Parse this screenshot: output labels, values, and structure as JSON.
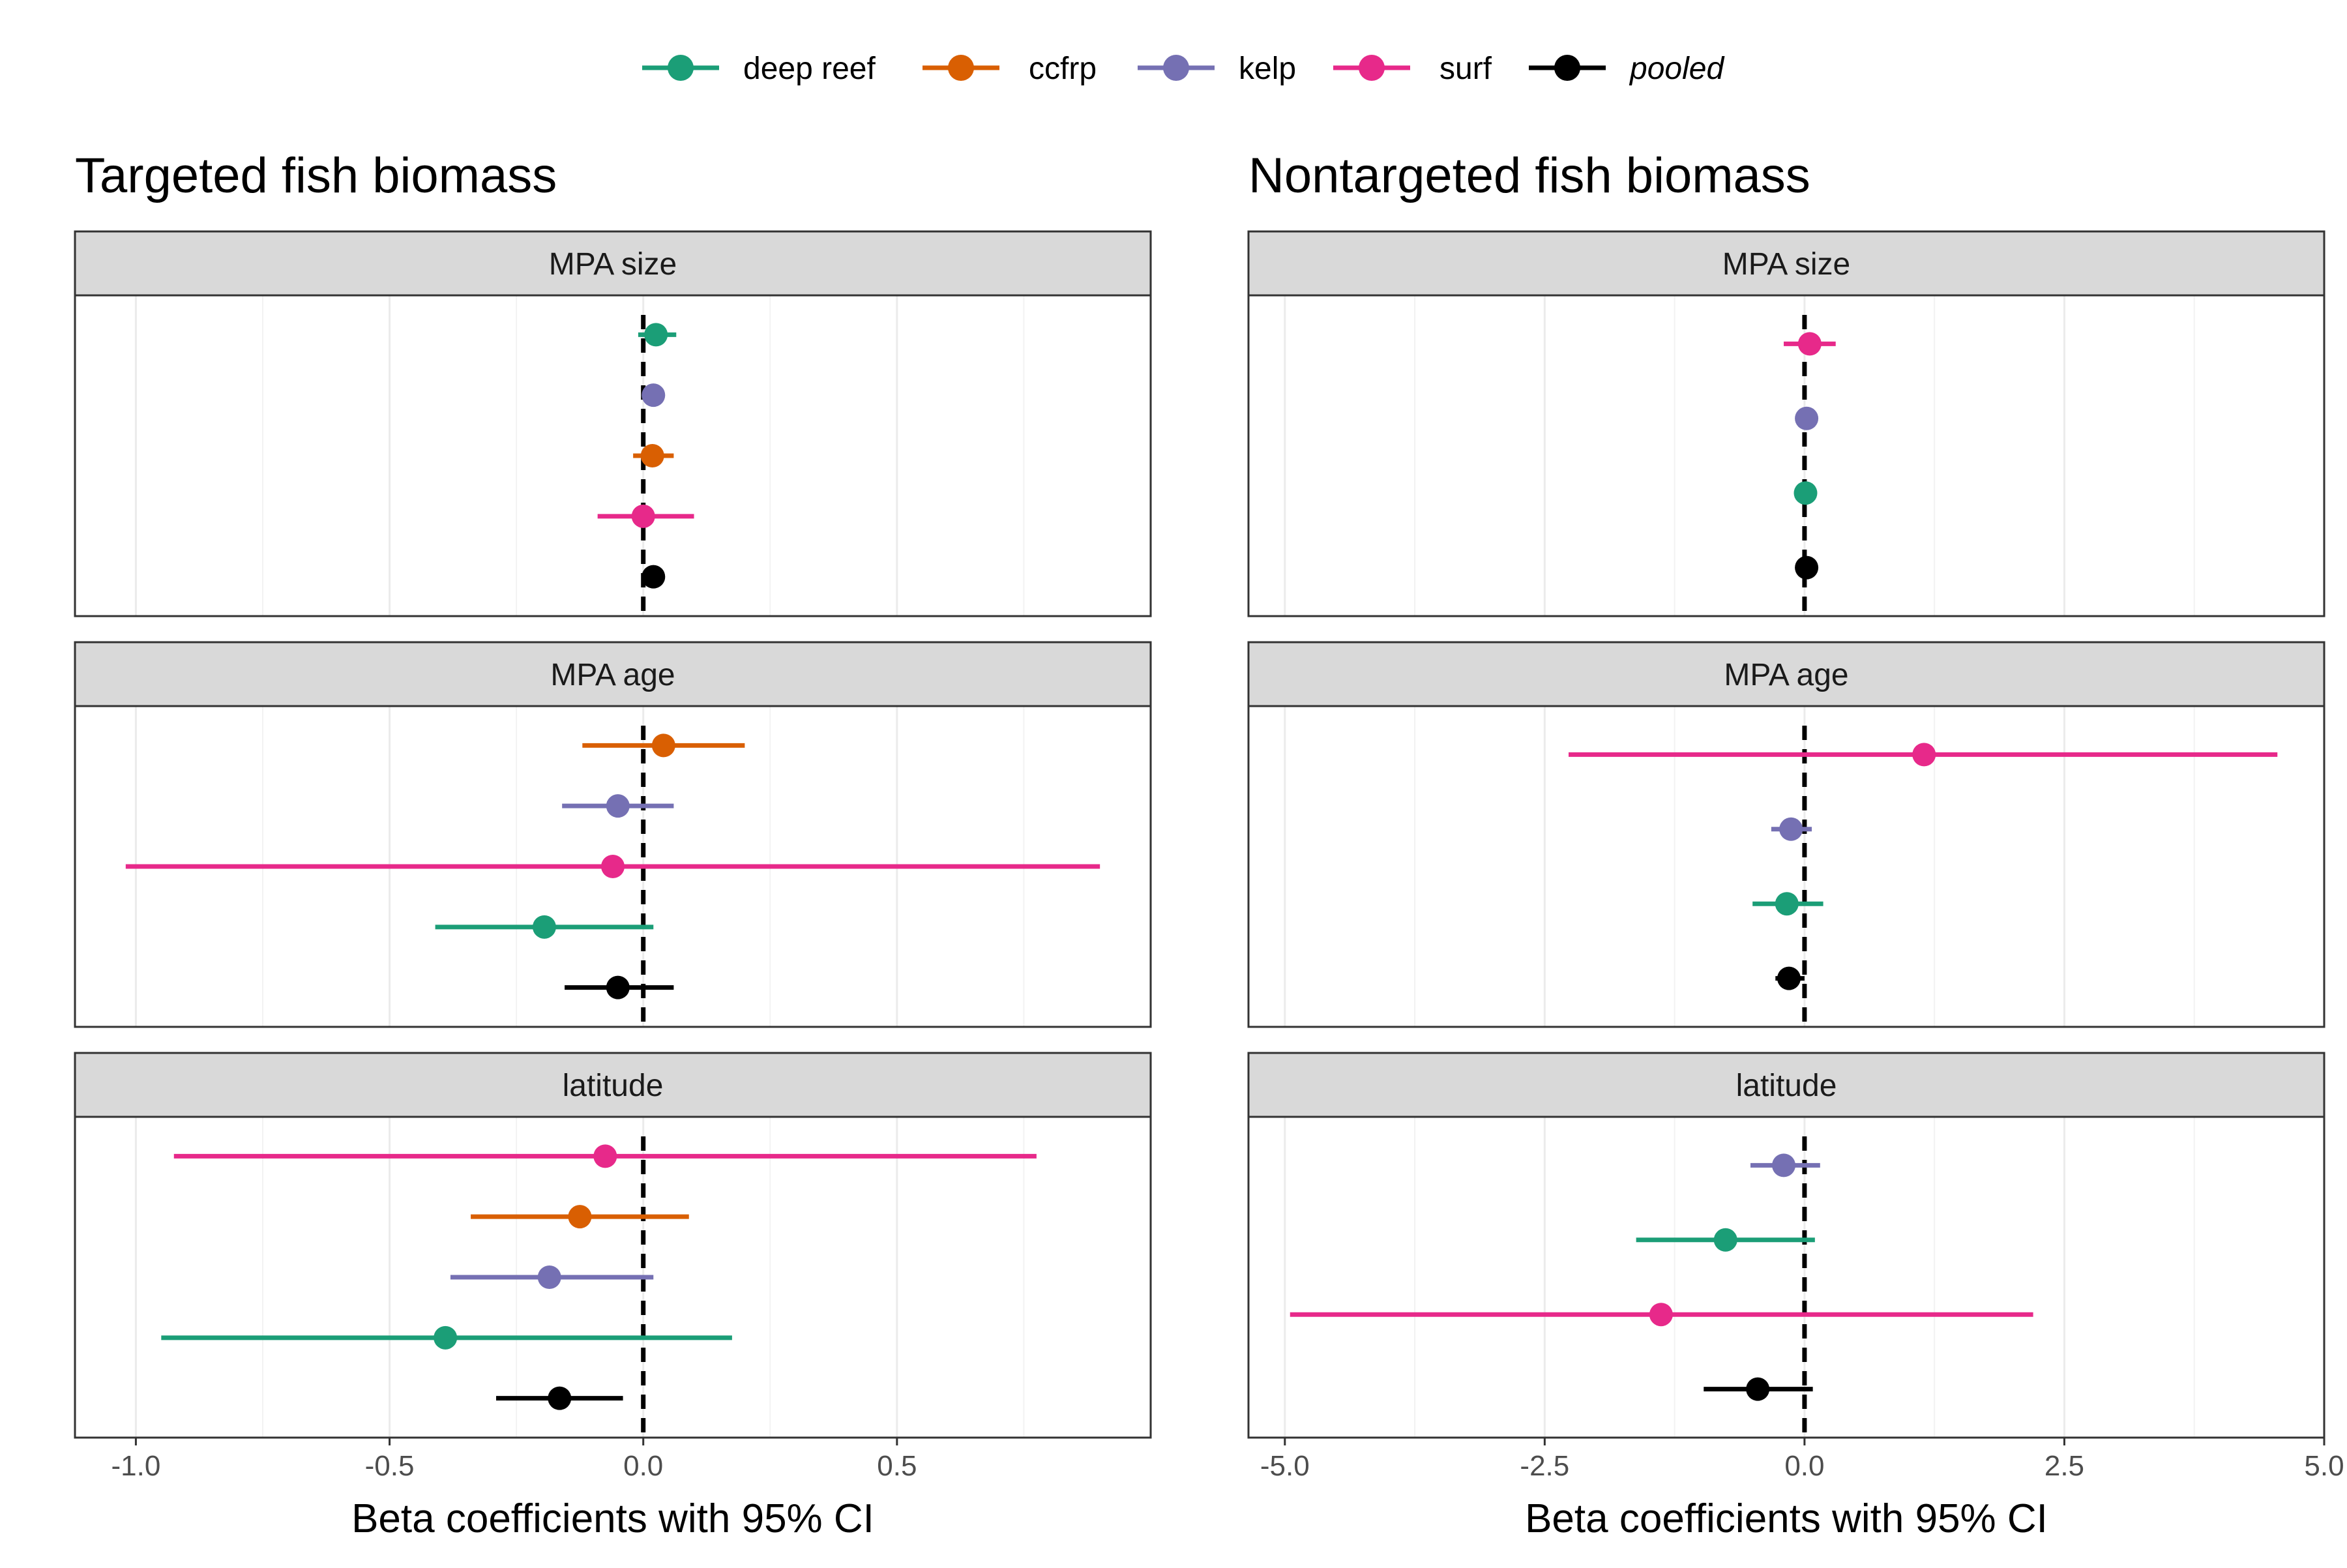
{
  "legend": {
    "items": [
      {
        "label": "deep reef",
        "color": "#1B9E77",
        "italic": false
      },
      {
        "label": "ccfrp",
        "color": "#D95F02",
        "italic": false
      },
      {
        "label": "kelp",
        "color": "#7570B3",
        "italic": false
      },
      {
        "label": "surf",
        "color": "#E7298A",
        "italic": false
      },
      {
        "label": "pooled",
        "color": "#000000",
        "italic": true
      }
    ],
    "placement": "top-center"
  },
  "chart_data": [
    {
      "type": "scatter",
      "title": "Targeted fish biomass",
      "xlabel": "Beta coefficients with 95% CI",
      "xlim": [
        -1.12,
        1.0
      ],
      "xticks": [
        -1.0,
        -0.5,
        0.0,
        0.5
      ],
      "xtick_labels": [
        "-1.0",
        "-0.5",
        "0.0",
        "0.5"
      ],
      "reference_line": 0,
      "grid": true,
      "facets": [
        {
          "label": "MPA size",
          "rows": [
            {
              "series": "deep reef",
              "estimate": 0.025,
              "lower": -0.01,
              "upper": 0.065
            },
            {
              "series": "kelp",
              "estimate": 0.02,
              "lower": 0.02,
              "upper": 0.02
            },
            {
              "series": "ccfrp",
              "estimate": 0.018,
              "lower": -0.02,
              "upper": 0.06
            },
            {
              "series": "surf",
              "estimate": 0.0,
              "lower": -0.09,
              "upper": 0.1
            },
            {
              "series": "pooled",
              "estimate": 0.02,
              "lower": 0.02,
              "upper": 0.02
            }
          ]
        },
        {
          "label": "MPA age",
          "rows": [
            {
              "series": "ccfrp",
              "estimate": 0.04,
              "lower": -0.12,
              "upper": 0.2
            },
            {
              "series": "kelp",
              "estimate": -0.05,
              "lower": -0.16,
              "upper": 0.06
            },
            {
              "series": "surf",
              "estimate": -0.06,
              "lower": -1.02,
              "upper": 0.9
            },
            {
              "series": "deep reef",
              "estimate": -0.195,
              "lower": -0.41,
              "upper": 0.02
            },
            {
              "series": "pooled",
              "estimate": -0.05,
              "lower": -0.155,
              "upper": 0.06
            }
          ]
        },
        {
          "label": "latitude",
          "rows": [
            {
              "series": "surf",
              "estimate": -0.075,
              "lower": -0.925,
              "upper": 0.775
            },
            {
              "series": "ccfrp",
              "estimate": -0.125,
              "lower": -0.34,
              "upper": 0.09
            },
            {
              "series": "kelp",
              "estimate": -0.185,
              "lower": -0.38,
              "upper": 0.02
            },
            {
              "series": "deep reef",
              "estimate": -0.39,
              "lower": -0.95,
              "upper": 0.175
            },
            {
              "series": "pooled",
              "estimate": -0.165,
              "lower": -0.29,
              "upper": -0.04
            }
          ]
        }
      ]
    },
    {
      "type": "scatter",
      "title": "Nontargeted fish biomass",
      "xlabel": "Beta coefficients with 95% CI",
      "xlim": [
        -5.35,
        5.0
      ],
      "xticks": [
        -5.0,
        -2.5,
        0.0,
        2.5,
        5.0
      ],
      "xtick_labels": [
        "-5.0",
        "-2.5",
        "0.0",
        "2.5",
        "5.0"
      ],
      "reference_line": 0,
      "grid": true,
      "facets": [
        {
          "label": "MPA size",
          "rows": [
            {
              "series": "surf",
              "estimate": 0.05,
              "lower": -0.2,
              "upper": 0.3
            },
            {
              "series": "kelp",
              "estimate": 0.02,
              "lower": 0.02,
              "upper": 0.02
            },
            {
              "series": "deep reef",
              "estimate": 0.01,
              "lower": 0.01,
              "upper": 0.01
            },
            {
              "series": "pooled",
              "estimate": 0.02,
              "lower": 0.02,
              "upper": 0.02
            }
          ]
        },
        {
          "label": "MPA age",
          "rows": [
            {
              "series": "surf",
              "estimate": 1.15,
              "lower": -2.27,
              "upper": 4.55
            },
            {
              "series": "kelp",
              "estimate": -0.13,
              "lower": -0.32,
              "upper": 0.07
            },
            {
              "series": "deep reef",
              "estimate": -0.17,
              "lower": -0.5,
              "upper": 0.18
            },
            {
              "series": "pooled",
              "estimate": -0.15,
              "lower": -0.28,
              "upper": 0.0
            }
          ]
        },
        {
          "label": "latitude",
          "rows": [
            {
              "series": "kelp",
              "estimate": -0.2,
              "lower": -0.52,
              "upper": 0.15
            },
            {
              "series": "deep reef",
              "estimate": -0.76,
              "lower": -1.62,
              "upper": 0.1
            },
            {
              "series": "surf",
              "estimate": -1.38,
              "lower": -4.95,
              "upper": 2.2
            },
            {
              "series": "pooled",
              "estimate": -0.45,
              "lower": -0.97,
              "upper": 0.08
            }
          ]
        }
      ]
    }
  ]
}
